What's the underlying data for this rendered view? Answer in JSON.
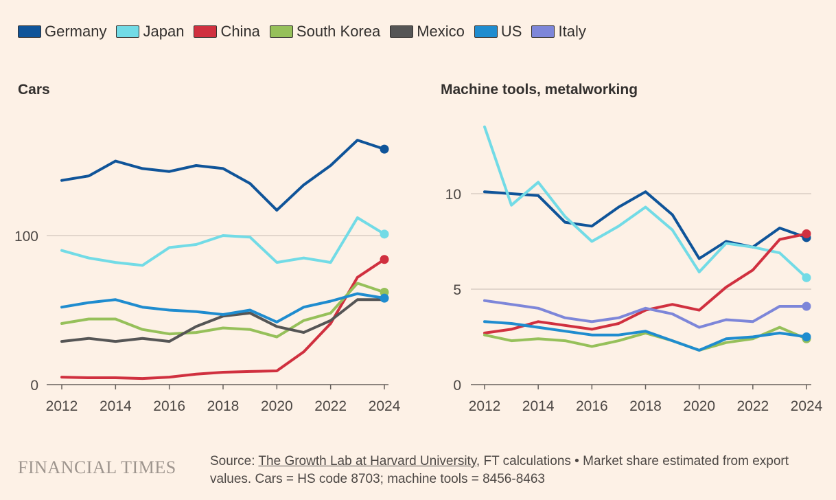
{
  "legend": [
    {
      "name": "Germany",
      "color": "#0f5499"
    },
    {
      "name": "Japan",
      "color": "#72dbe6"
    },
    {
      "name": "China",
      "color": "#d0303f"
    },
    {
      "name": "South Korea",
      "color": "#96c05a"
    },
    {
      "name": "Mexico",
      "color": "#555555"
    },
    {
      "name": "US",
      "color": "#1f8ccf"
    },
    {
      "name": "Italy",
      "color": "#7d86d9"
    }
  ],
  "chart_data": [
    {
      "type": "line",
      "title": "Cars",
      "x": [
        2012,
        2013,
        2014,
        2015,
        2016,
        2017,
        2018,
        2019,
        2020,
        2021,
        2022,
        2023,
        2024
      ],
      "xticks": [
        "2012",
        "2014",
        "2016",
        "2018",
        "2020",
        "2022",
        "2024"
      ],
      "yticks": [
        "0",
        "100"
      ],
      "ylim": [
        0,
        175
      ],
      "series": [
        {
          "name": "Germany",
          "values": [
            137,
            140,
            150,
            145,
            143,
            147,
            145,
            135,
            117,
            134,
            147,
            164,
            158
          ],
          "end_dot": true
        },
        {
          "name": "Japan",
          "values": [
            90,
            85,
            82,
            80,
            92,
            94,
            100,
            99,
            82,
            85,
            82,
            112,
            101
          ],
          "end_dot": true
        },
        {
          "name": "China",
          "values": [
            5,
            4.6,
            4.6,
            4.1,
            5,
            7,
            8.3,
            8.8,
            9.2,
            22,
            41,
            72,
            84
          ],
          "end_dot": true
        },
        {
          "name": "South Korea",
          "values": [
            41,
            44,
            44,
            37,
            34,
            35,
            38,
            37,
            32,
            43,
            48,
            68,
            62
          ],
          "end_dot": true
        },
        {
          "name": "Mexico",
          "values": [
            29,
            31,
            29,
            31,
            29,
            39,
            46,
            48,
            39,
            35,
            43,
            57,
            57
          ],
          "end_dot": false
        },
        {
          "name": "US",
          "values": [
            52,
            55,
            57,
            52,
            50,
            49,
            47,
            50,
            42,
            52,
            56,
            61,
            58
          ],
          "end_dot": true
        }
      ]
    },
    {
      "type": "line",
      "title": "Machine tools, metalworking",
      "x": [
        2012,
        2013,
        2014,
        2015,
        2016,
        2017,
        2018,
        2019,
        2020,
        2021,
        2022,
        2023,
        2024
      ],
      "xticks": [
        "2012",
        "2014",
        "2016",
        "2018",
        "2020",
        "2022",
        "2024"
      ],
      "yticks": [
        "0",
        "5",
        "10"
      ],
      "ylim": [
        0,
        14
      ],
      "series": [
        {
          "name": "Germany",
          "values": [
            10.1,
            10.0,
            9.9,
            8.5,
            8.3,
            9.3,
            10.1,
            8.9,
            6.6,
            7.5,
            7.2,
            8.2,
            7.7
          ],
          "end_dot": true
        },
        {
          "name": "Japan",
          "values": [
            13.5,
            9.4,
            10.6,
            8.8,
            7.5,
            8.3,
            9.3,
            8.1,
            5.9,
            7.4,
            7.2,
            6.9,
            5.6
          ],
          "end_dot": true
        },
        {
          "name": "China",
          "values": [
            2.7,
            2.9,
            3.3,
            3.1,
            2.9,
            3.2,
            3.9,
            4.2,
            3.9,
            5.1,
            6.0,
            7.6,
            7.9
          ],
          "end_dot": true
        },
        {
          "name": "South Korea",
          "values": [
            2.6,
            2.3,
            2.4,
            2.3,
            2.0,
            2.3,
            2.7,
            2.3,
            1.8,
            2.2,
            2.4,
            3.0,
            2.4
          ],
          "end_dot": true
        },
        {
          "name": "US",
          "values": [
            3.3,
            3.2,
            3.0,
            2.8,
            2.6,
            2.6,
            2.8,
            2.3,
            1.8,
            2.4,
            2.5,
            2.7,
            2.5
          ],
          "end_dot": true
        },
        {
          "name": "Italy",
          "values": [
            4.4,
            4.2,
            4.0,
            3.5,
            3.3,
            3.5,
            4.0,
            3.7,
            3.0,
            3.4,
            3.3,
            4.1,
            4.1
          ],
          "end_dot": true
        }
      ]
    }
  ],
  "footer": {
    "logo": "FINANCIAL TIMES",
    "source_prefix": "Source: ",
    "source_link": "The Growth Lab at Harvard University",
    "source_rest": ", FT calculations • Market share estimated from export values. Cars = HS code 8703; machine tools = 8456-8463"
  }
}
